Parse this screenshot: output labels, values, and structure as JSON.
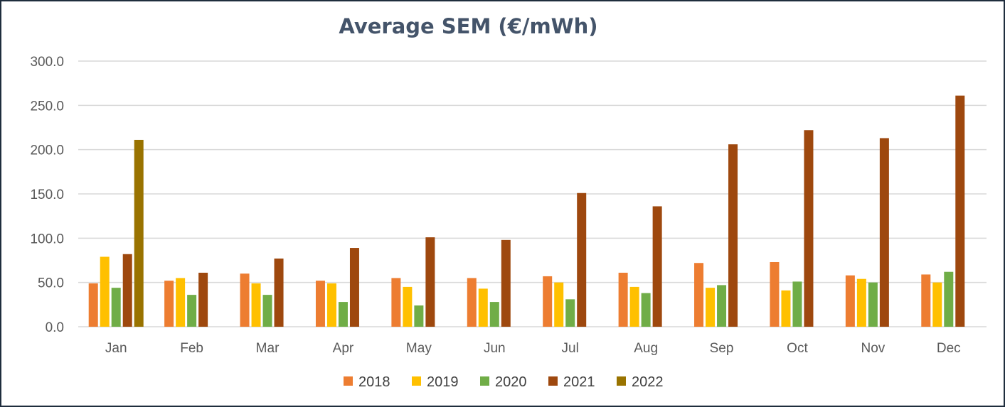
{
  "chart_data": {
    "type": "bar",
    "title": "Average SEM (€/mWh)",
    "categories": [
      "Jan",
      "Feb",
      "Mar",
      "Apr",
      "May",
      "Jun",
      "Jul",
      "Aug",
      "Sep",
      "Oct",
      "Nov",
      "Dec"
    ],
    "series": [
      {
        "name": "2018",
        "color": "#ed7d31",
        "values": [
          49,
          52,
          60,
          52,
          55,
          55,
          57,
          61,
          72,
          73,
          58,
          59
        ]
      },
      {
        "name": "2019",
        "color": "#ffc000",
        "values": [
          79,
          55,
          49,
          49,
          45,
          43,
          50,
          45,
          44,
          41,
          54,
          50
        ]
      },
      {
        "name": "2020",
        "color": "#70ad47",
        "values": [
          44,
          36,
          36,
          28,
          24,
          28,
          31,
          38,
          47,
          51,
          50,
          62
        ]
      },
      {
        "name": "2021",
        "color": "#9e480e",
        "values": [
          82,
          61,
          77,
          89,
          101,
          98,
          151,
          136,
          206,
          222,
          213,
          261
        ]
      },
      {
        "name": "2022",
        "color": "#997300",
        "values": [
          211,
          null,
          null,
          null,
          null,
          null,
          null,
          null,
          null,
          null,
          null,
          null
        ]
      }
    ],
    "yticks": [
      "0.0",
      "50.0",
      "100.0",
      "150.0",
      "200.0",
      "250.0",
      "300.0"
    ],
    "ylim": [
      0,
      300
    ],
    "xlabel": "",
    "ylabel": "",
    "grid": true,
    "legend": "bottom"
  }
}
